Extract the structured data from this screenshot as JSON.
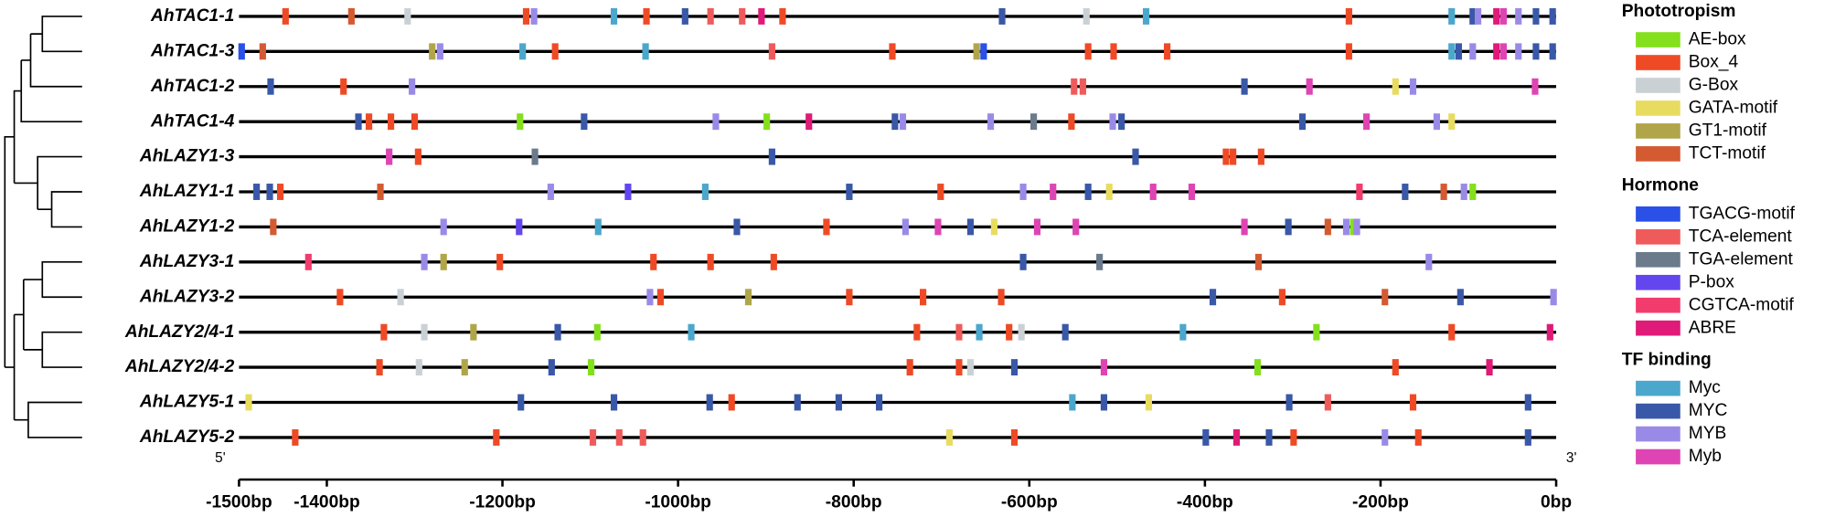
{
  "chart_data": {
    "type": "promoter_map",
    "xlim": [
      -1500,
      0
    ],
    "xticks": [
      {
        "value": -1500,
        "label": "-1500bp"
      },
      {
        "value": -1400,
        "label": "-1400bp"
      },
      {
        "value": -1200,
        "label": "-1200bp"
      },
      {
        "value": -1000,
        "label": "-1000bp"
      },
      {
        "value": -800,
        "label": "-800bp"
      },
      {
        "value": -600,
        "label": "-600bp"
      },
      {
        "value": -400,
        "label": "-400bp"
      },
      {
        "value": -200,
        "label": "-200bp"
      },
      {
        "value": 0,
        "label": "0bp"
      }
    ],
    "end_labels": [
      "5'",
      "3'"
    ],
    "legend": [
      {
        "title": "Phototropism",
        "items": [
          {
            "name": "AE-box",
            "color": "#84e01c"
          },
          {
            "name": "Box_4",
            "color": "#ef4a26"
          },
          {
            "name": "G-Box",
            "color": "#c9d1d5"
          },
          {
            "name": "GATA-motif",
            "color": "#e8dc60"
          },
          {
            "name": "GT1-motif",
            "color": "#b1a54a"
          },
          {
            "name": "TCT-motif",
            "color": "#d45a32"
          }
        ]
      },
      {
        "title": "Hormone",
        "items": [
          {
            "name": "TGACG-motif",
            "color": "#2a50e8"
          },
          {
            "name": "TCA-element",
            "color": "#ef5b5b"
          },
          {
            "name": "TGA-element",
            "color": "#6b7b8c"
          },
          {
            "name": "P-box",
            "color": "#6446ef"
          },
          {
            "name": "CGTCA-motif",
            "color": "#f23c6e"
          },
          {
            "name": "ABRE",
            "color": "#e01a78"
          }
        ]
      },
      {
        "title": "TF binding",
        "items": [
          {
            "name": "Myc",
            "color": "#4ba7cc"
          },
          {
            "name": "MYC",
            "color": "#3a58a8"
          },
          {
            "name": "MYB",
            "color": "#9a8ae8"
          },
          {
            "name": "Myb",
            "color": "#df44b4"
          }
        ]
      }
    ],
    "genes": [
      {
        "name": "AhTAC1-1",
        "elements": [
          {
            "motif": "Box_4",
            "x": -1447
          },
          {
            "motif": "TCT-motif",
            "x": -1372
          },
          {
            "motif": "G-Box",
            "x": -1308
          },
          {
            "motif": "Box_4",
            "x": -1173
          },
          {
            "motif": "MYB",
            "x": -1164
          },
          {
            "motif": "Myc",
            "x": -1073
          },
          {
            "motif": "Box_4",
            "x": -1036
          },
          {
            "motif": "MYC",
            "x": -992
          },
          {
            "motif": "TCA-element",
            "x": -963
          },
          {
            "motif": "TCA-element",
            "x": -927
          },
          {
            "motif": "ABRE",
            "x": -905
          },
          {
            "motif": "Box_4",
            "x": -881
          },
          {
            "motif": "MYC",
            "x": -631
          },
          {
            "motif": "G-Box",
            "x": -535
          },
          {
            "motif": "Myc",
            "x": -467
          },
          {
            "motif": "Box_4",
            "x": -236
          },
          {
            "motif": "Myc",
            "x": -119
          },
          {
            "motif": "MYC",
            "x": -95
          },
          {
            "motif": "MYB",
            "x": -89
          },
          {
            "motif": "ABRE",
            "x": -68
          },
          {
            "motif": "Myb",
            "x": -60
          },
          {
            "motif": "MYB",
            "x": -43
          },
          {
            "motif": "MYC",
            "x": -23
          },
          {
            "motif": "MYC",
            "x": -4
          }
        ]
      },
      {
        "name": "AhTAC1-3",
        "elements": [
          {
            "motif": "TGACG-motif",
            "x": -1497
          },
          {
            "motif": "TCT-motif",
            "x": -1473
          },
          {
            "motif": "GT1-motif",
            "x": -1280
          },
          {
            "motif": "MYB",
            "x": -1271
          },
          {
            "motif": "Myc",
            "x": -1177
          },
          {
            "motif": "Box_4",
            "x": -1140
          },
          {
            "motif": "Myc",
            "x": -1037
          },
          {
            "motif": "TCA-element",
            "x": -893
          },
          {
            "motif": "Box_4",
            "x": -756
          },
          {
            "motif": "GT1-motif",
            "x": -660
          },
          {
            "motif": "TGACG-motif",
            "x": -652
          },
          {
            "motif": "Box_4",
            "x": -533
          },
          {
            "motif": "Box_4",
            "x": -504
          },
          {
            "motif": "Box_4",
            "x": -443
          },
          {
            "motif": "Box_4",
            "x": -236
          },
          {
            "motif": "Myc",
            "x": -119
          },
          {
            "motif": "MYC",
            "x": -111
          },
          {
            "motif": "MYB",
            "x": -95
          },
          {
            "motif": "ABRE",
            "x": -68
          },
          {
            "motif": "Myb",
            "x": -60
          },
          {
            "motif": "MYB",
            "x": -43
          },
          {
            "motif": "MYC",
            "x": -23
          },
          {
            "motif": "MYC",
            "x": -4
          }
        ]
      },
      {
        "name": "AhTAC1-2",
        "elements": [
          {
            "motif": "MYC",
            "x": -1464
          },
          {
            "motif": "Box_4",
            "x": -1381
          },
          {
            "motif": "MYB",
            "x": -1303
          },
          {
            "motif": "TCA-element",
            "x": -549
          },
          {
            "motif": "TCA-element",
            "x": -539
          },
          {
            "motif": "MYC",
            "x": -355
          },
          {
            "motif": "Myb",
            "x": -281
          },
          {
            "motif": "GATA-motif",
            "x": -183
          },
          {
            "motif": "MYB",
            "x": -163
          },
          {
            "motif": "Myb",
            "x": -24
          }
        ]
      },
      {
        "name": "AhTAC1-4",
        "elements": [
          {
            "motif": "MYC",
            "x": -1364
          },
          {
            "motif": "Box_4",
            "x": -1352
          },
          {
            "motif": "Box_4",
            "x": -1327
          },
          {
            "motif": "Box_4",
            "x": -1300
          },
          {
            "motif": "AE-box",
            "x": -1180
          },
          {
            "motif": "MYC",
            "x": -1107
          },
          {
            "motif": "MYB",
            "x": -957
          },
          {
            "motif": "AE-box",
            "x": -899
          },
          {
            "motif": "ABRE",
            "x": -851
          },
          {
            "motif": "MYC",
            "x": -753
          },
          {
            "motif": "MYB",
            "x": -744
          },
          {
            "motif": "MYB",
            "x": -644
          },
          {
            "motif": "TGA-element",
            "x": -595
          },
          {
            "motif": "Box_4",
            "x": -552
          },
          {
            "motif": "MYB",
            "x": -505
          },
          {
            "motif": "MYC",
            "x": -495
          },
          {
            "motif": "MYC",
            "x": -289
          },
          {
            "motif": "Myb",
            "x": -216
          },
          {
            "motif": "MYB",
            "x": -136
          },
          {
            "motif": "GATA-motif",
            "x": -119
          }
        ]
      },
      {
        "name": "AhLAZY1-3",
        "elements": [
          {
            "motif": "Myb",
            "x": -1329
          },
          {
            "motif": "Box_4",
            "x": -1296
          },
          {
            "motif": "TGA-element",
            "x": -1163
          },
          {
            "motif": "MYC",
            "x": -893
          },
          {
            "motif": "MYC",
            "x": -479
          },
          {
            "motif": "Box_4",
            "x": -376
          },
          {
            "motif": "Box_4",
            "x": -368
          },
          {
            "motif": "Box_4",
            "x": -336
          }
        ]
      },
      {
        "name": "AhLAZY1-1",
        "elements": [
          {
            "motif": "MYC",
            "x": -1480
          },
          {
            "motif": "MYC",
            "x": -1465
          },
          {
            "motif": "Box_4",
            "x": -1453
          },
          {
            "motif": "TCT-motif",
            "x": -1339
          },
          {
            "motif": "MYB",
            "x": -1145
          },
          {
            "motif": "P-box",
            "x": -1057
          },
          {
            "motif": "Myc",
            "x": -969
          },
          {
            "motif": "MYC",
            "x": -805
          },
          {
            "motif": "Box_4",
            "x": -701
          },
          {
            "motif": "MYB",
            "x": -607
          },
          {
            "motif": "Myb",
            "x": -573
          },
          {
            "motif": "MYC",
            "x": -533
          },
          {
            "motif": "GATA-motif",
            "x": -509
          },
          {
            "motif": "Myb",
            "x": -459
          },
          {
            "motif": "Myb",
            "x": -415
          },
          {
            "motif": "CGTCA-motif",
            "x": -224
          },
          {
            "motif": "MYC",
            "x": -172
          },
          {
            "motif": "TCT-motif",
            "x": -128
          },
          {
            "motif": "MYB",
            "x": -105
          },
          {
            "motif": "AE-box",
            "x": -95
          }
        ]
      },
      {
        "name": "AhLAZY1-2",
        "elements": [
          {
            "motif": "TCT-motif",
            "x": -1461
          },
          {
            "motif": "MYB",
            "x": -1267
          },
          {
            "motif": "P-box",
            "x": -1181
          },
          {
            "motif": "Myc",
            "x": -1091
          },
          {
            "motif": "MYC",
            "x": -933
          },
          {
            "motif": "Box_4",
            "x": -831
          },
          {
            "motif": "MYB",
            "x": -741
          },
          {
            "motif": "Myb",
            "x": -704
          },
          {
            "motif": "MYC",
            "x": -667
          },
          {
            "motif": "GATA-motif",
            "x": -640
          },
          {
            "motif": "Myb",
            "x": -591
          },
          {
            "motif": "Myb",
            "x": -547
          },
          {
            "motif": "Myb",
            "x": -355
          },
          {
            "motif": "MYC",
            "x": -305
          },
          {
            "motif": "TCT-motif",
            "x": -260
          },
          {
            "motif": "MYB",
            "x": -239
          },
          {
            "motif": "AE-box",
            "x": -231
          },
          {
            "motif": "MYB",
            "x": -227
          }
        ]
      },
      {
        "name": "AhLAZY3-1",
        "elements": [
          {
            "motif": "CGTCA-motif",
            "x": -1421
          },
          {
            "motif": "MYB",
            "x": -1289
          },
          {
            "motif": "GT1-motif",
            "x": -1267
          },
          {
            "motif": "Box_4",
            "x": -1203
          },
          {
            "motif": "Box_4",
            "x": -1028
          },
          {
            "motif": "Box_4",
            "x": -963
          },
          {
            "motif": "Box_4",
            "x": -891
          },
          {
            "motif": "MYC",
            "x": -607
          },
          {
            "motif": "TGA-element",
            "x": -520
          },
          {
            "motif": "TCT-motif",
            "x": -339
          },
          {
            "motif": "MYB",
            "x": -145
          }
        ]
      },
      {
        "name": "AhLAZY3-2",
        "elements": [
          {
            "motif": "Box_4",
            "x": -1385
          },
          {
            "motif": "G-Box",
            "x": -1316
          },
          {
            "motif": "MYB",
            "x": -1032
          },
          {
            "motif": "Box_4",
            "x": -1020
          },
          {
            "motif": "GT1-motif",
            "x": -920
          },
          {
            "motif": "Box_4",
            "x": -805
          },
          {
            "motif": "Box_4",
            "x": -721
          },
          {
            "motif": "Box_4",
            "x": -632
          },
          {
            "motif": "MYC",
            "x": -391
          },
          {
            "motif": "Box_4",
            "x": -312
          },
          {
            "motif": "TCT-motif",
            "x": -195
          },
          {
            "motif": "MYC",
            "x": -109
          },
          {
            "motif": "MYB",
            "x": -3
          }
        ]
      },
      {
        "name": "AhLAZY2/4-1",
        "elements": [
          {
            "motif": "Box_4",
            "x": -1335
          },
          {
            "motif": "G-Box",
            "x": -1289
          },
          {
            "motif": "GT1-motif",
            "x": -1233
          },
          {
            "motif": "MYC",
            "x": -1137
          },
          {
            "motif": "AE-box",
            "x": -1092
          },
          {
            "motif": "Myc",
            "x": -985
          },
          {
            "motif": "Box_4",
            "x": -728
          },
          {
            "motif": "TCA-element",
            "x": -680
          },
          {
            "motif": "Myc",
            "x": -657
          },
          {
            "motif": "Box_4",
            "x": -623
          },
          {
            "motif": "G-Box",
            "x": -609
          },
          {
            "motif": "MYC",
            "x": -559
          },
          {
            "motif": "Myc",
            "x": -425
          },
          {
            "motif": "AE-box",
            "x": -273
          },
          {
            "motif": "Box_4",
            "x": -119
          },
          {
            "motif": "ABRE",
            "x": -7
          }
        ]
      },
      {
        "name": "AhLAZY2/4-2",
        "elements": [
          {
            "motif": "Box_4",
            "x": -1340
          },
          {
            "motif": "G-Box",
            "x": -1295
          },
          {
            "motif": "GT1-motif",
            "x": -1243
          },
          {
            "motif": "MYC",
            "x": -1144
          },
          {
            "motif": "AE-box",
            "x": -1099
          },
          {
            "motif": "Box_4",
            "x": -736
          },
          {
            "motif": "Box_4",
            "x": -680
          },
          {
            "motif": "G-Box",
            "x": -667
          },
          {
            "motif": "MYC",
            "x": -617
          },
          {
            "motif": "Myb",
            "x": -515
          },
          {
            "motif": "AE-box",
            "x": -340
          },
          {
            "motif": "Box_4",
            "x": -183
          },
          {
            "motif": "ABRE",
            "x": -76
          }
        ]
      },
      {
        "name": "AhLAZY5-1",
        "elements": [
          {
            "motif": "GATA-motif",
            "x": -1489
          },
          {
            "motif": "MYC",
            "x": -1179
          },
          {
            "motif": "MYC",
            "x": -1073
          },
          {
            "motif": "MYC",
            "x": -964
          },
          {
            "motif": "Box_4",
            "x": -939
          },
          {
            "motif": "MYC",
            "x": -864
          },
          {
            "motif": "MYC",
            "x": -817
          },
          {
            "motif": "MYC",
            "x": -771
          },
          {
            "motif": "Myc",
            "x": -551
          },
          {
            "motif": "MYC",
            "x": -515
          },
          {
            "motif": "GATA-motif",
            "x": -464
          },
          {
            "motif": "MYC",
            "x": -304
          },
          {
            "motif": "TCA-element",
            "x": -260
          },
          {
            "motif": "Box_4",
            "x": -163
          },
          {
            "motif": "MYC",
            "x": -32
          }
        ]
      },
      {
        "name": "AhLAZY5-2",
        "elements": [
          {
            "motif": "Box_4",
            "x": -1436
          },
          {
            "motif": "Box_4",
            "x": -1207
          },
          {
            "motif": "TCA-element",
            "x": -1097
          },
          {
            "motif": "TCA-element",
            "x": -1067
          },
          {
            "motif": "TCA-element",
            "x": -1040
          },
          {
            "motif": "GATA-motif",
            "x": -691
          },
          {
            "motif": "Box_4",
            "x": -617
          },
          {
            "motif": "MYC",
            "x": -399
          },
          {
            "motif": "ABRE",
            "x": -364
          },
          {
            "motif": "MYC",
            "x": -327
          },
          {
            "motif": "Box_4",
            "x": -299
          },
          {
            "motif": "MYB",
            "x": -195
          },
          {
            "motif": "Box_4",
            "x": -157
          },
          {
            "motif": "MYC",
            "x": -32
          }
        ]
      }
    ]
  }
}
